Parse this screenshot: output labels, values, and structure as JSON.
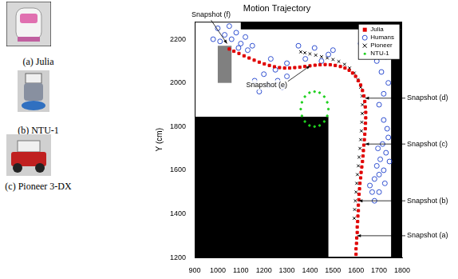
{
  "images": [
    {
      "caption": "(a) Julia"
    },
    {
      "caption": "(b) NTU-1"
    },
    {
      "caption": "(c) Pioneer 3-DX"
    }
  ],
  "chart_data": {
    "type": "scatter",
    "title": "Motion Trajectory",
    "y_label": "Y (cm)",
    "xlim": [
      900,
      1800
    ],
    "xticks": [
      900,
      1000,
      1100,
      1200,
      1300,
      1400,
      1500,
      1600,
      1700,
      1800
    ],
    "ylim": [
      1200,
      2280
    ],
    "yticks": [
      1200,
      1400,
      1600,
      1800,
      2000,
      2200
    ],
    "grid": false,
    "legend": "upper right",
    "series": [
      {
        "name": "Julia",
        "color": "#e00000",
        "marker": "square",
        "x": [
          1600,
          1600,
          1602,
          1603,
          1605,
          1605,
          1607,
          1608,
          1610,
          1610,
          1612,
          1613,
          1615,
          1617,
          1620,
          1622,
          1625,
          1628,
          1630,
          1632,
          1634,
          1636,
          1638,
          1640,
          1641,
          1642,
          1642,
          1640,
          1638,
          1634,
          1628,
          1620,
          1610,
          1598,
          1585,
          1570,
          1552,
          1532,
          1510,
          1488,
          1466,
          1444,
          1422,
          1400,
          1378,
          1356,
          1334,
          1312,
          1290,
          1268,
          1246,
          1224,
          1202,
          1180,
          1158,
          1136,
          1114,
          1092,
          1070,
          1050
        ],
        "values": [
          1215,
          1240,
          1265,
          1290,
          1315,
          1340,
          1365,
          1390,
          1415,
          1440,
          1465,
          1490,
          1515,
          1540,
          1565,
          1590,
          1615,
          1640,
          1665,
          1690,
          1715,
          1740,
          1765,
          1790,
          1815,
          1840,
          1865,
          1890,
          1915,
          1940,
          1965,
          1990,
          2010,
          2030,
          2045,
          2058,
          2068,
          2075,
          2080,
          2083,
          2084,
          2083,
          2081,
          2078,
          2075,
          2072,
          2070,
          2068,
          2068,
          2070,
          2074,
          2080,
          2087,
          2095,
          2104,
          2114,
          2124,
          2135,
          2145,
          2155
        ]
      },
      {
        "name": "Humans",
        "color": "#3050d0",
        "marker": "open_circle",
        "x": [
          1660,
          1680,
          1700,
          1690,
          1720,
          1705,
          1730,
          1695,
          1715,
          1740,
          1680,
          1670,
          1700,
          1725,
          1745,
          1735,
          1720,
          1700,
          1720,
          1740,
          1710,
          1690,
          1730,
          1700,
          1650,
          1620,
          1450,
          1480,
          1500,
          1420,
          1380,
          1350,
          1180,
          1220,
          1260,
          1300,
          1200,
          1250,
          1160,
          1300,
          1230,
          1280,
          1000,
          1030,
          1060,
          1080,
          1100,
          1120,
          1150,
          1010,
          1050,
          980,
          1130,
          1090
        ],
        "values": [
          1530,
          1560,
          1580,
          1620,
          1600,
          1650,
          1680,
          1700,
          1720,
          1750,
          1460,
          1500,
          1500,
          1540,
          1640,
          1790,
          1830,
          1900,
          1950,
          2000,
          2050,
          2100,
          2120,
          2170,
          2150,
          2180,
          2100,
          2130,
          2150,
          2160,
          2110,
          2170,
          1960,
          1990,
          2010,
          2030,
          2040,
          2060,
          2010,
          2090,
          2110,
          1980,
          2250,
          2220,
          2200,
          2230,
          2180,
          2210,
          2170,
          2190,
          2260,
          2200,
          2150,
          2160
        ]
      },
      {
        "name": "Pioneer",
        "color": "#000000",
        "marker": "x",
        "x": [
          1592,
          1594,
          1597,
          1600,
          1603,
          1606,
          1610,
          1613,
          1617,
          1620,
          1623,
          1625,
          1627,
          1628,
          1626,
          1620,
          1608,
          1592,
          1572,
          1550,
          1525,
          1500,
          1475,
          1450,
          1425,
          1400,
          1378,
          1360
        ],
        "values": [
          1380,
          1420,
          1460,
          1500,
          1540,
          1580,
          1620,
          1660,
          1700,
          1740,
          1780,
          1820,
          1860,
          1900,
          1940,
          1980,
          2015,
          2045,
          2068,
          2085,
          2098,
          2107,
          2114,
          2120,
          2127,
          2133,
          2138,
          2142
        ]
      },
      {
        "name": "NTU-1",
        "color": "#20d020",
        "marker": "dot",
        "x": [
          1480,
          1475,
          1462,
          1442,
          1420,
          1398,
          1378,
          1365,
          1360,
          1365,
          1378,
          1398,
          1420,
          1442,
          1462,
          1475
        ],
        "values": [
          1880,
          1911,
          1937,
          1955,
          1960,
          1955,
          1937,
          1911,
          1880,
          1849,
          1823,
          1805,
          1800,
          1805,
          1823,
          1849
        ]
      }
    ],
    "obstacles": [
      {
        "x": [
          1100,
          1800
        ],
        "y": [
          2245,
          2280
        ],
        "color": "#000000"
      },
      {
        "x": [
          900,
          1480
        ],
        "y": [
          1200,
          1845
        ],
        "color": "#000000"
      },
      {
        "x": [
          1752,
          1800
        ],
        "y": [
          1200,
          2245
        ],
        "color": "#000000"
      },
      {
        "x": [
          1000,
          1060
        ],
        "y": [
          2000,
          2170
        ],
        "color": "#808080"
      }
    ],
    "annotations": [
      {
        "text": "Snapshot (a)",
        "x": 1605,
        "y": 1300
      },
      {
        "text": "Snapshot (b)",
        "x": 1612,
        "y": 1460
      },
      {
        "text": "Snapshot (c)",
        "x": 1640,
        "y": 1720
      },
      {
        "text": "Snapshot (d)",
        "x": 1640,
        "y": 1930
      },
      {
        "text": "Snapshot (e)",
        "x": 1400,
        "y": 2078
      },
      {
        "text": "Snapshot (f)",
        "x": 1040,
        "y": 2180
      }
    ]
  }
}
